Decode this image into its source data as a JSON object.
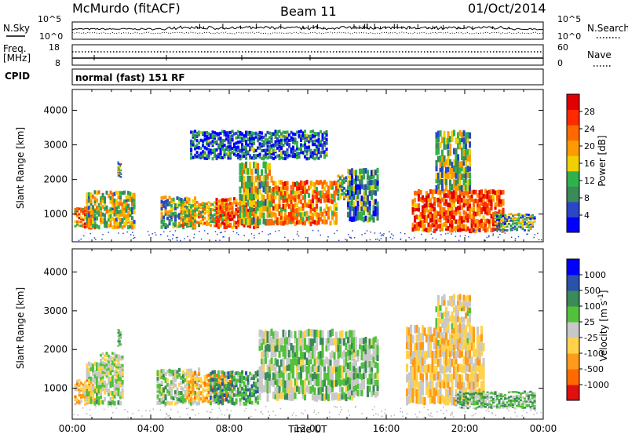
{
  "header": {
    "station": "McMurdo (fitACF)",
    "beam": "Beam 11",
    "date": "01/Oct/2014"
  },
  "sky_panel": {
    "left_label": "N.Sky",
    "right_label": "N.Search",
    "left_top_tick": "10^5",
    "left_bottom_tick": "10^0",
    "right_top_tick": "10^5",
    "right_bottom_tick": "10^0"
  },
  "freq_panel": {
    "left_label_1": "Freq.",
    "left_label_2": "[MHz]",
    "left_top_tick": "18",
    "left_bottom_tick": "8",
    "right_label": "Nave",
    "right_top_tick": "60",
    "right_bottom_tick": "0"
  },
  "cpid": {
    "label": "CPID",
    "mode": "normal (fast) 151 RF"
  },
  "colors": {
    "background": "#ffffff",
    "axis": "#000000",
    "ground_scatter": "#b4b4b4",
    "power_scale": [
      "#0000ff",
      "#2b47c7",
      "#3a8a5a",
      "#2fb24b",
      "#f0d000",
      "#ff9a00",
      "#ff6a00",
      "#ff2a00",
      "#e00000"
    ],
    "velocity_scale": [
      "#0000ff",
      "#2a52a8",
      "#3a8a5a",
      "#52c23a",
      "#c8c8c8",
      "#ffd24a",
      "#ff9a1a",
      "#ff6a00",
      "#e01010"
    ]
  },
  "chart_data": [
    {
      "type": "heatmap",
      "title": "",
      "xlabel": "Time UT",
      "ylabel": "Slant Range [km]",
      "x_ticks": [
        "00:00",
        "04:00",
        "08:00",
        "12:00",
        "16:00",
        "20:00",
        "00:00"
      ],
      "y_ticks": [
        "1000",
        "2000",
        "3000",
        "4000"
      ],
      "xlim_hours": [
        0,
        24
      ],
      "ylim_km": [
        200,
        4600
      ],
      "colorbar": {
        "label": "Power [dB]",
        "ticks": [
          "4",
          "8",
          "12",
          "16",
          "20",
          "24",
          "28"
        ],
        "range": [
          0,
          30
        ]
      },
      "echo_regions": [
        {
          "t_start": 0.1,
          "t_end": 1.2,
          "r_min": 600,
          "r_max": 1200,
          "value": 20
        },
        {
          "t_start": 0.7,
          "t_end": 3.2,
          "r_min": 600,
          "r_max": 1650,
          "value": 14
        },
        {
          "t_start": 2.3,
          "t_end": 2.5,
          "r_min": 2100,
          "r_max": 2500,
          "value": 10
        },
        {
          "t_start": 4.5,
          "t_end": 6.3,
          "r_min": 600,
          "r_max": 1500,
          "value": 12
        },
        {
          "t_start": 5.5,
          "t_end": 8.0,
          "r_min": 650,
          "r_max": 1350,
          "value": 16
        },
        {
          "t_start": 7.3,
          "t_end": 9.5,
          "r_min": 600,
          "r_max": 1450,
          "value": 24
        },
        {
          "t_start": 8.5,
          "t_end": 10.2,
          "r_min": 700,
          "r_max": 2500,
          "value": 14
        },
        {
          "t_start": 10.2,
          "t_end": 13.5,
          "r_min": 700,
          "r_max": 1950,
          "value": 20
        },
        {
          "t_start": 13.5,
          "t_end": 14.3,
          "r_min": 1400,
          "r_max": 2100,
          "value": 12
        },
        {
          "t_start": 14.0,
          "t_end": 15.6,
          "r_min": 800,
          "r_max": 2300,
          "value": 8
        },
        {
          "t_start": 17.3,
          "t_end": 22.0,
          "r_min": 500,
          "r_max": 1700,
          "value": 24
        },
        {
          "t_start": 18.5,
          "t_end": 20.3,
          "r_min": 1700,
          "r_max": 3400,
          "value": 12
        },
        {
          "t_start": 21.5,
          "t_end": 23.6,
          "r_min": 550,
          "r_max": 1000,
          "value": 10
        },
        {
          "t_start": 6.0,
          "t_end": 13.0,
          "r_min": 2600,
          "r_max": 3400,
          "value": 6
        }
      ]
    },
    {
      "type": "heatmap",
      "title": "",
      "xlabel": "Time UT",
      "ylabel": "Slant Range [km]",
      "x_ticks": [
        "00:00",
        "04:00",
        "08:00",
        "12:00",
        "16:00",
        "20:00",
        "00:00"
      ],
      "y_ticks": [
        "1000",
        "2000",
        "3000",
        "4000"
      ],
      "xlim_hours": [
        0,
        24
      ],
      "ylim_km": [
        200,
        4600
      ],
      "colorbar": {
        "label": "Velocity [m s^-1]",
        "ticks": [
          "1000",
          "500",
          "100",
          "25",
          "-25",
          "-100",
          "-500",
          "-1000"
        ],
        "range": [
          -1000,
          1000
        ]
      },
      "echo_regions": [
        {
          "t_start": 0.1,
          "t_end": 1.2,
          "r_min": 600,
          "r_max": 1200,
          "value": -300
        },
        {
          "t_start": 0.7,
          "t_end": 2.6,
          "r_min": 600,
          "r_max": 1650,
          "value": 60
        },
        {
          "t_start": 1.4,
          "t_end": 2.6,
          "r_min": 1300,
          "r_max": 1900,
          "value": 0
        },
        {
          "t_start": 2.3,
          "t_end": 2.5,
          "r_min": 2100,
          "r_max": 2500,
          "value": 300
        },
        {
          "t_start": 4.3,
          "t_end": 6.5,
          "r_min": 600,
          "r_max": 1500,
          "value": 150
        },
        {
          "t_start": 5.8,
          "t_end": 8.2,
          "r_min": 650,
          "r_max": 1400,
          "value": -400
        },
        {
          "t_start": 7.0,
          "t_end": 9.5,
          "r_min": 600,
          "r_max": 1450,
          "value": 350
        },
        {
          "t_start": 9.5,
          "t_end": 14.4,
          "r_min": 700,
          "r_max": 2500,
          "value": 120
        },
        {
          "t_start": 14.0,
          "t_end": 15.6,
          "r_min": 800,
          "r_max": 2300,
          "value": 150
        },
        {
          "t_start": 17.0,
          "t_end": 21.0,
          "r_min": 600,
          "r_max": 2600,
          "value": -200
        },
        {
          "t_start": 18.5,
          "t_end": 20.3,
          "r_min": 2000,
          "r_max": 3400,
          "value": -150
        },
        {
          "t_start": 19.5,
          "t_end": 23.6,
          "r_min": 500,
          "r_max": 900,
          "value": 250
        }
      ]
    }
  ]
}
